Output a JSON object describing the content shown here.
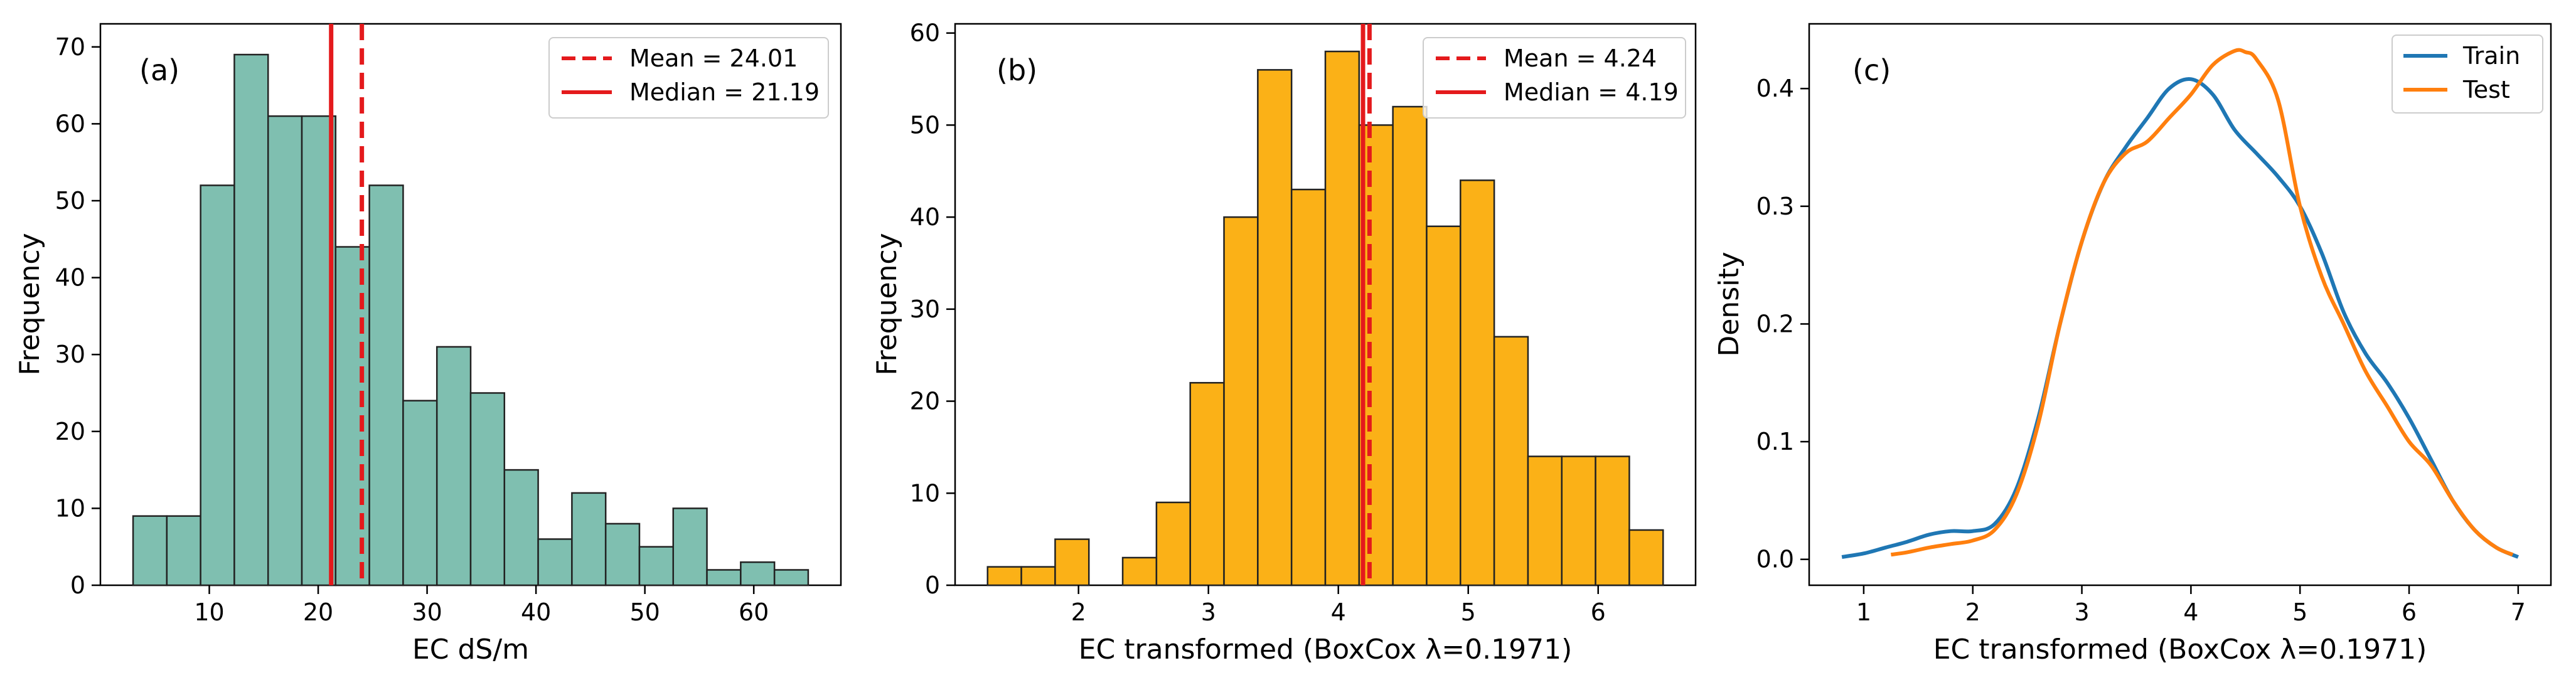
{
  "chart_data": [
    {
      "id": "a",
      "type": "bar",
      "subtype": "histogram",
      "panel_label": "(a)",
      "xlabel": "EC dS/m",
      "ylabel": "Frequency",
      "xlim": [
        0.0,
        68.0
      ],
      "ylim": [
        0,
        73
      ],
      "xticks": [
        "10",
        "20",
        "30",
        "40",
        "50",
        "60"
      ],
      "xtick_values": [
        10,
        20,
        30,
        40,
        50,
        60
      ],
      "yticks": [
        "0",
        "10",
        "20",
        "30",
        "40",
        "50",
        "60",
        "70"
      ],
      "ytick_values": [
        0,
        10,
        20,
        30,
        40,
        50,
        60,
        70
      ],
      "bin_start": 3.0,
      "bin_width": 3.1,
      "values": [
        9,
        9,
        52,
        69,
        61,
        61,
        44,
        52,
        24,
        31,
        25,
        15,
        6,
        12,
        8,
        5,
        10,
        2,
        3,
        2
      ],
      "bar_color": "#7fbfb0",
      "edge_color": "#222222",
      "vlines": [
        {
          "x": 24.01,
          "style": "dashed",
          "color": "#e41a1c"
        },
        {
          "x": 21.19,
          "style": "solid",
          "color": "#e41a1c"
        }
      ],
      "legend": [
        {
          "label": "Mean = 24.01",
          "style": "dashed",
          "color": "#e41a1c"
        },
        {
          "label": "Median = 21.19",
          "style": "solid",
          "color": "#e41a1c"
        }
      ]
    },
    {
      "id": "b",
      "type": "bar",
      "subtype": "histogram",
      "panel_label": "(b)",
      "xlabel": "EC transformed (BoxCox λ=0.1971)",
      "ylabel": "Frequency",
      "xlim": [
        1.05,
        6.75
      ],
      "ylim": [
        0,
        61
      ],
      "xticks": [
        "2",
        "3",
        "4",
        "5",
        "6"
      ],
      "xtick_values": [
        2,
        3,
        4,
        5,
        6
      ],
      "yticks": [
        "0",
        "10",
        "20",
        "30",
        "40",
        "50",
        "60"
      ],
      "ytick_values": [
        0,
        10,
        20,
        30,
        40,
        50,
        60
      ],
      "bin_start": 1.3,
      "bin_width": 0.26,
      "values": [
        2,
        2,
        5,
        0,
        3,
        9,
        22,
        40,
        56,
        43,
        58,
        50,
        52,
        39,
        44,
        27,
        14,
        14,
        14,
        6
      ],
      "bar_color": "#fbb117",
      "edge_color": "#222222",
      "vlines": [
        {
          "x": 4.24,
          "style": "dashed",
          "color": "#e41a1c"
        },
        {
          "x": 4.19,
          "style": "solid",
          "color": "#e41a1c"
        }
      ],
      "legend": [
        {
          "label": "Mean = 4.24",
          "style": "dashed",
          "color": "#e41a1c"
        },
        {
          "label": "Median = 4.19",
          "style": "solid",
          "color": "#e41a1c"
        }
      ]
    },
    {
      "id": "c",
      "type": "line",
      "subtype": "kde",
      "panel_label": "(c)",
      "xlabel": "EC transformed (BoxCox λ=0.1971)",
      "ylabel": "Density",
      "xlim": [
        0.5,
        7.3
      ],
      "ylim": [
        -0.022,
        0.455
      ],
      "xticks": [
        "1",
        "2",
        "3",
        "4",
        "5",
        "6",
        "7"
      ],
      "xtick_values": [
        1,
        2,
        3,
        4,
        5,
        6,
        7
      ],
      "yticks": [
        "0.0",
        "0.1",
        "0.2",
        "0.3",
        "0.4"
      ],
      "ytick_values": [
        0.0,
        0.1,
        0.2,
        0.3,
        0.4
      ],
      "series": [
        {
          "name": "Train",
          "color": "#1f77b4",
          "x": [
            0.8,
            1.0,
            1.2,
            1.4,
            1.6,
            1.8,
            2.0,
            2.2,
            2.4,
            2.6,
            2.8,
            3.0,
            3.2,
            3.4,
            3.6,
            3.8,
            4.0,
            4.2,
            4.4,
            4.6,
            4.8,
            5.0,
            5.2,
            5.4,
            5.6,
            5.8,
            6.0,
            6.2,
            6.4,
            6.6,
            6.8,
            7.0
          ],
          "y": [
            0.002,
            0.005,
            0.01,
            0.015,
            0.021,
            0.024,
            0.024,
            0.03,
            0.06,
            0.12,
            0.2,
            0.27,
            0.32,
            0.35,
            0.375,
            0.4,
            0.408,
            0.395,
            0.365,
            0.345,
            0.325,
            0.3,
            0.26,
            0.21,
            0.175,
            0.15,
            0.12,
            0.085,
            0.05,
            0.025,
            0.01,
            0.002
          ]
        },
        {
          "name": "Test",
          "color": "#ff7f0e",
          "x": [
            1.25,
            1.4,
            1.6,
            1.8,
            2.0,
            2.2,
            2.4,
            2.6,
            2.8,
            3.0,
            3.2,
            3.4,
            3.6,
            3.8,
            4.0,
            4.2,
            4.4,
            4.5,
            4.6,
            4.8,
            5.0,
            5.2,
            5.4,
            5.6,
            5.8,
            6.0,
            6.2,
            6.4,
            6.6,
            6.8,
            6.95
          ],
          "y": [
            0.004,
            0.006,
            0.01,
            0.013,
            0.016,
            0.025,
            0.055,
            0.115,
            0.2,
            0.27,
            0.32,
            0.345,
            0.355,
            0.375,
            0.395,
            0.42,
            0.432,
            0.431,
            0.425,
            0.39,
            0.3,
            0.24,
            0.2,
            0.16,
            0.13,
            0.1,
            0.08,
            0.05,
            0.025,
            0.01,
            0.004
          ]
        }
      ],
      "legend": [
        {
          "label": "Train",
          "style": "solid",
          "color": "#1f77b4"
        },
        {
          "label": "Test",
          "style": "solid",
          "color": "#ff7f0e"
        }
      ]
    }
  ]
}
